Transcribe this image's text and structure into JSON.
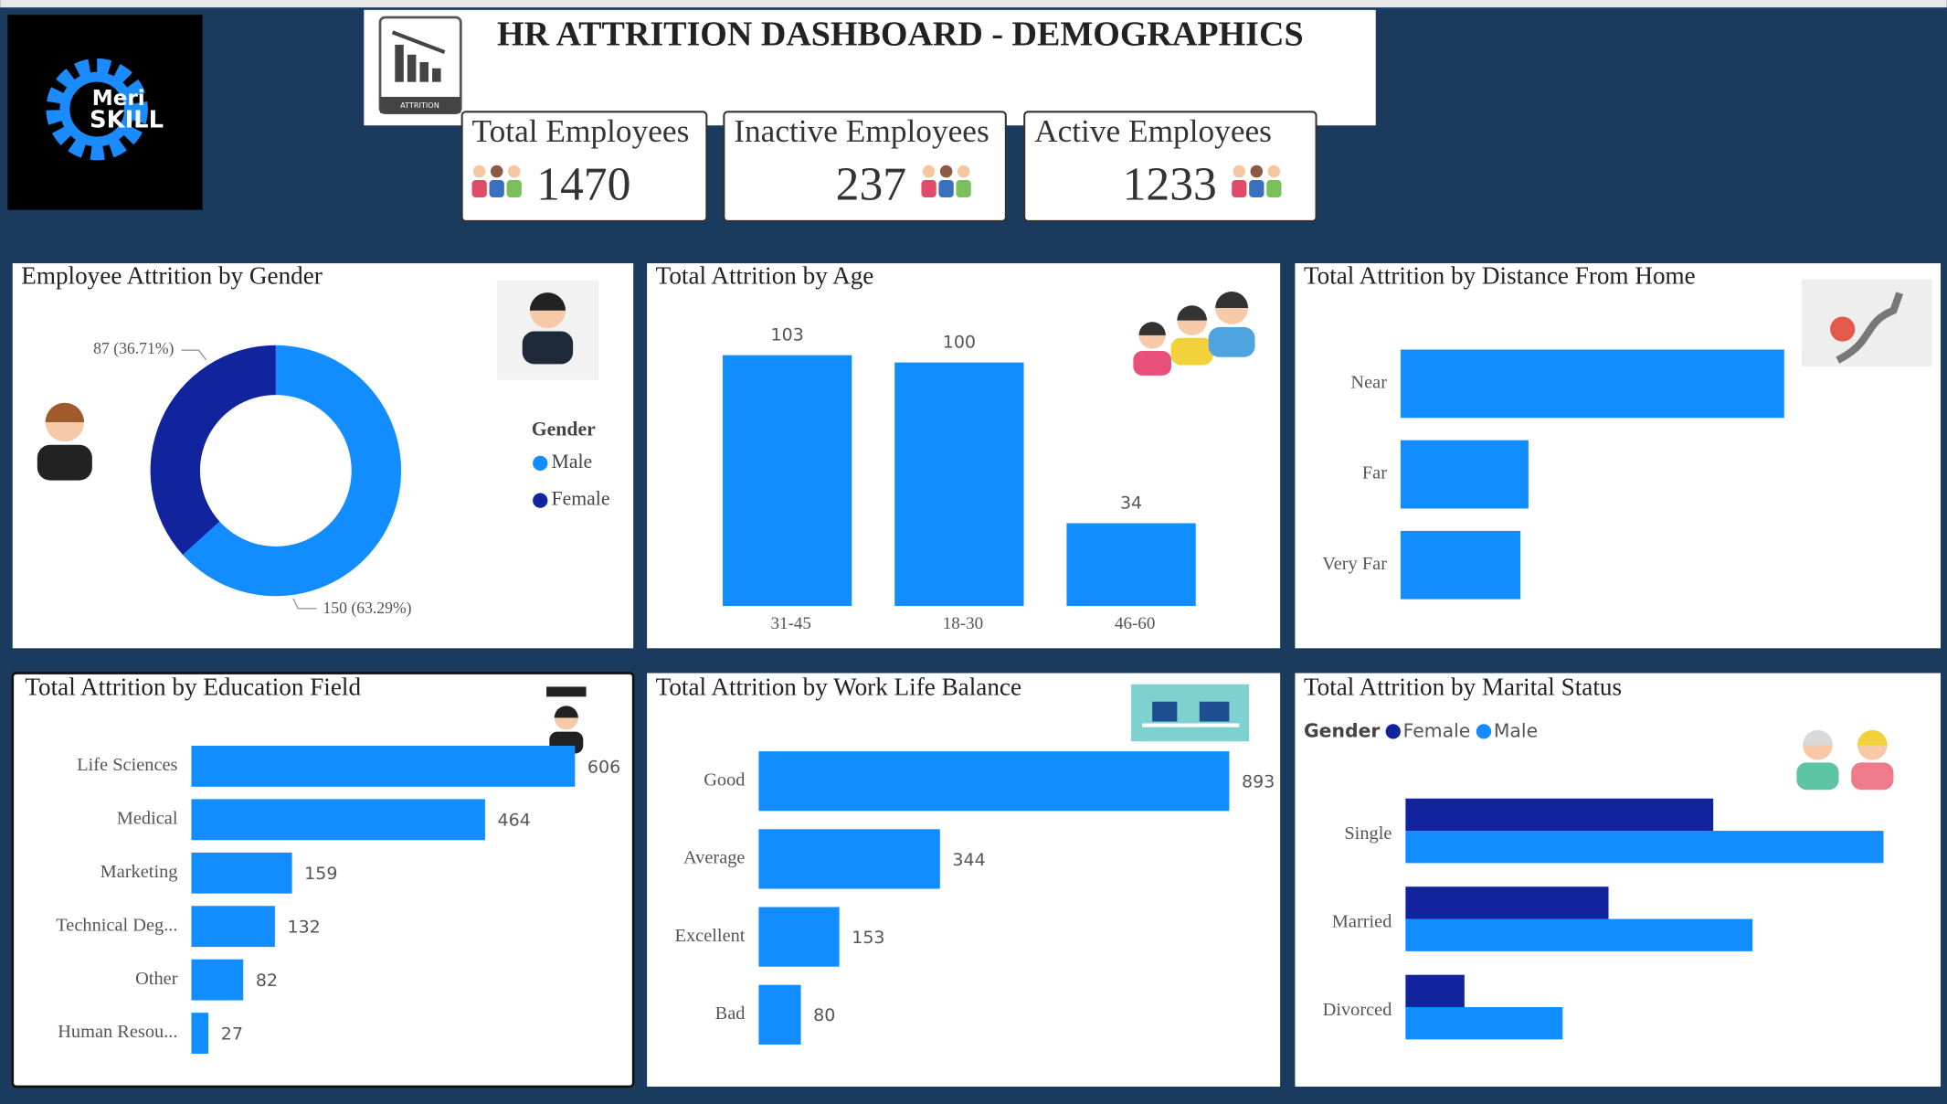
{
  "header": {
    "title": "HR ATTRITION DASHBOARD - DEMOGRAPHICS",
    "icon_label": "ATTRITION",
    "logo": [
      "Meri",
      "SKILL"
    ]
  },
  "kpis": [
    {
      "label": "Total Employees",
      "value": 1470
    },
    {
      "label": "Inactive Employees",
      "value": 237
    },
    {
      "label": "Active Employees",
      "value": 1233
    }
  ],
  "chart_data": [
    {
      "type": "donut",
      "title": "Employee Attrition by Gender",
      "legend_title": "Gender",
      "categories": [
        "Male",
        "Female"
      ],
      "values": [
        150,
        87
      ],
      "value_labels": [
        "150 (63.29%)",
        "87 (36.71%)"
      ],
      "colors": [
        "#118dff",
        "#12239e"
      ]
    },
    {
      "type": "bar",
      "title": "Total Attrition by Age",
      "categories": [
        "31-45",
        "18-30",
        "46-60"
      ],
      "values": [
        103,
        100,
        34
      ],
      "color": "#118dff",
      "data_labels": true
    },
    {
      "type": "hbar",
      "title": "Total Attrition by Distance From Home",
      "categories": [
        "Near",
        "Far",
        "Very Far"
      ],
      "values": [
        144,
        48,
        45
      ],
      "color": "#118dff",
      "data_labels": false
    },
    {
      "type": "hbar",
      "title": "Total Attrition by Education Field",
      "categories": [
        "Life Sciences",
        "Medical",
        "Marketing",
        "Technical Deg...",
        "Other",
        "Human Resou..."
      ],
      "values": [
        606,
        464,
        159,
        132,
        82,
        27
      ],
      "color": "#118dff",
      "data_labels": true
    },
    {
      "type": "hbar",
      "title": "Total Attrition by Work Life Balance",
      "categories": [
        "Good",
        "Average",
        "Excellent",
        "Bad"
      ],
      "values": [
        893,
        344,
        153,
        80
      ],
      "color": "#118dff",
      "data_labels": true
    },
    {
      "type": "grouped-hbar",
      "title": "Total Attrition by Marital Status",
      "legend_title": "Gender",
      "categories": [
        "Single",
        "Married",
        "Divorced"
      ],
      "series": [
        {
          "name": "Female",
          "color": "#12239e",
          "values": [
            47,
            31,
            9
          ]
        },
        {
          "name": "Male",
          "color": "#118dff",
          "values": [
            73,
            53,
            24
          ]
        }
      ],
      "data_labels": false
    }
  ]
}
